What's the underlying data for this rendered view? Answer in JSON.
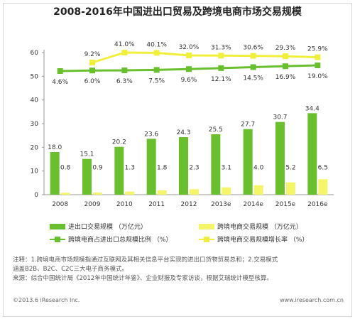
{
  "title": "2008-2016年中国进出口贸易及跨境电商市场交易规模",
  "chart_data": {
    "type": "bar",
    "categories": [
      "2008",
      "2009",
      "2010",
      "2011",
      "2012",
      "2013e",
      "2014e",
      "2015e",
      "2016e"
    ],
    "ylim": [
      0,
      60
    ],
    "yticks": [
      0,
      10,
      20,
      30,
      40,
      50,
      60
    ],
    "series": [
      {
        "name": "进出口交易规模（万亿元）",
        "kind": "bar",
        "color": "#6abf2e",
        "values": [
          18.0,
          15.1,
          20.2,
          23.6,
          24.3,
          25.5,
          27.7,
          30.7,
          34.4
        ],
        "labels": [
          "18.0",
          "15.1",
          "20.2",
          "23.6",
          "24.3",
          "25.5",
          "27.7",
          "30.7",
          "34.4"
        ]
      },
      {
        "name": "跨境电商交易规模（万亿元）",
        "kind": "bar",
        "color": "#f5f56a",
        "values": [
          0.8,
          0.9,
          1.3,
          1.8,
          2.3,
          3.1,
          4.0,
          5.2,
          6.5
        ],
        "labels": [
          "0.8",
          "0.9",
          "1.3",
          "1.8",
          "2.3",
          "3.1",
          "4.0",
          "5.2",
          "6.5"
        ]
      },
      {
        "name": "跨境电商占进出口总规模比例（%）",
        "kind": "line",
        "color": "#6abf2e",
        "values": [
          4.6,
          6.0,
          6.3,
          7.5,
          9.6,
          12.1,
          14.5,
          16.9,
          19.0
        ],
        "labels": [
          "4.6%",
          "6.0%",
          "6.3%",
          "7.5%",
          "9.6%",
          "12.1%",
          "14.5%",
          "16.9%",
          "19.0%"
        ]
      },
      {
        "name": "跨境电商交易规模增长率（%）",
        "kind": "line",
        "color": "#f0f03c",
        "values": [
          null,
          9.2,
          41.0,
          40.1,
          32.0,
          31.3,
          30.6,
          29.3,
          25.9
        ],
        "labels": [
          "",
          "9.2%",
          "41.0%",
          "40.1%",
          "32.0%",
          "31.3%",
          "30.6%",
          "29.3%",
          "25.9%"
        ]
      }
    ]
  },
  "legend": {
    "items": [
      {
        "label": "进出口交易规模 （万亿元）",
        "type": "bar",
        "color": "#6abf2e"
      },
      {
        "label": "跨境电商交易规模 （万亿元）",
        "type": "bar",
        "color": "#f5f56a"
      },
      {
        "label": "跨境电商占进出口总规模比例 （%）",
        "type": "line",
        "color": "#6abf2e"
      },
      {
        "label": "跨境电商交易规模增长率 （%）",
        "type": "line",
        "color": "#f0f03c"
      }
    ]
  },
  "note": {
    "line1": "注释：1.跨境电商市场规模指通过互联网及其相关信息平台实现的进出口货物贸易总和；2.交易模式",
    "line2": "涵盖B2B、B2C、C2C三大电子商务模式。",
    "line3": "来源：综合中国统计局《2012年中国统计年鉴》、企业财报及专家访谈，根据艾瑞统计模型核算。"
  },
  "footer": {
    "copyright": "©2013.6 iResearch Inc.",
    "website": "www.iresearch.com.cn"
  }
}
